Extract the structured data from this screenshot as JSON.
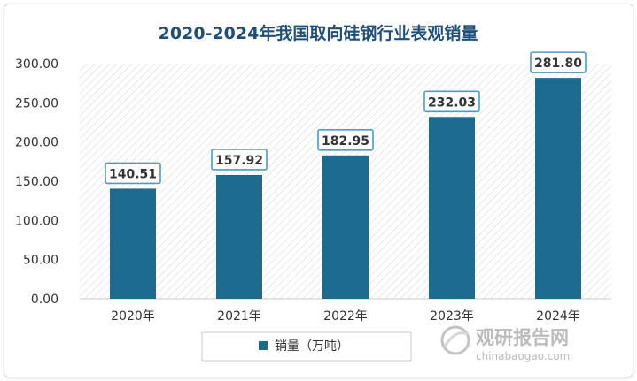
{
  "chart_data": {
    "type": "bar",
    "title": "2020-2024年我国取向硅钢行业表观销量",
    "categories": [
      "2020年",
      "2021年",
      "2022年",
      "2023年",
      "2024年"
    ],
    "series": [
      {
        "name": "销量（万吨）",
        "values": [
          140.51,
          157.92,
          182.95,
          232.03,
          281.8
        ]
      }
    ],
    "value_labels": [
      "140.51",
      "157.92",
      "182.95",
      "232.03",
      "281.80"
    ],
    "y_ticks": [
      "0.00",
      "50.00",
      "100.00",
      "150.00",
      "200.00",
      "250.00",
      "300.00"
    ],
    "ylim": [
      0,
      300
    ],
    "grid": false,
    "legend_position": "bottom-center",
    "colors": {
      "bar": "#1d6a8f",
      "title": "#1f4e79",
      "label_border": "#4a9cc4",
      "text": "#333333"
    }
  },
  "watermark": {
    "brand": "观研报告网",
    "domain": "chinabaogao.com"
  }
}
